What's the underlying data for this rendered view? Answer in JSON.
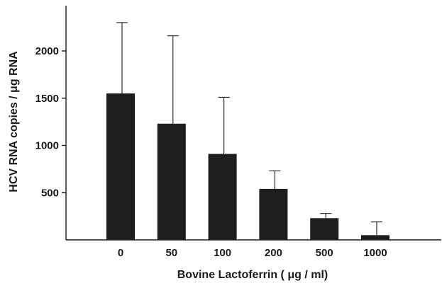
{
  "chart_data": {
    "type": "bar",
    "xlabel": "Bovine Lactoferrin ( μg / ml)",
    "ylabel": "HCV RNA copies / μg RNA",
    "categories": [
      "0",
      "50",
      "100",
      "200",
      "500",
      "1000"
    ],
    "values": [
      1550,
      1230,
      910,
      540,
      230,
      50
    ],
    "error_upper": [
      2300,
      2160,
      1510,
      730,
      280,
      190
    ],
    "yticks": [
      500,
      1000,
      1500,
      2000
    ],
    "ylim": [
      0,
      2400
    ],
    "colors": {
      "bar": "#1e1e1e",
      "axis": "#1a1a1a"
    }
  }
}
